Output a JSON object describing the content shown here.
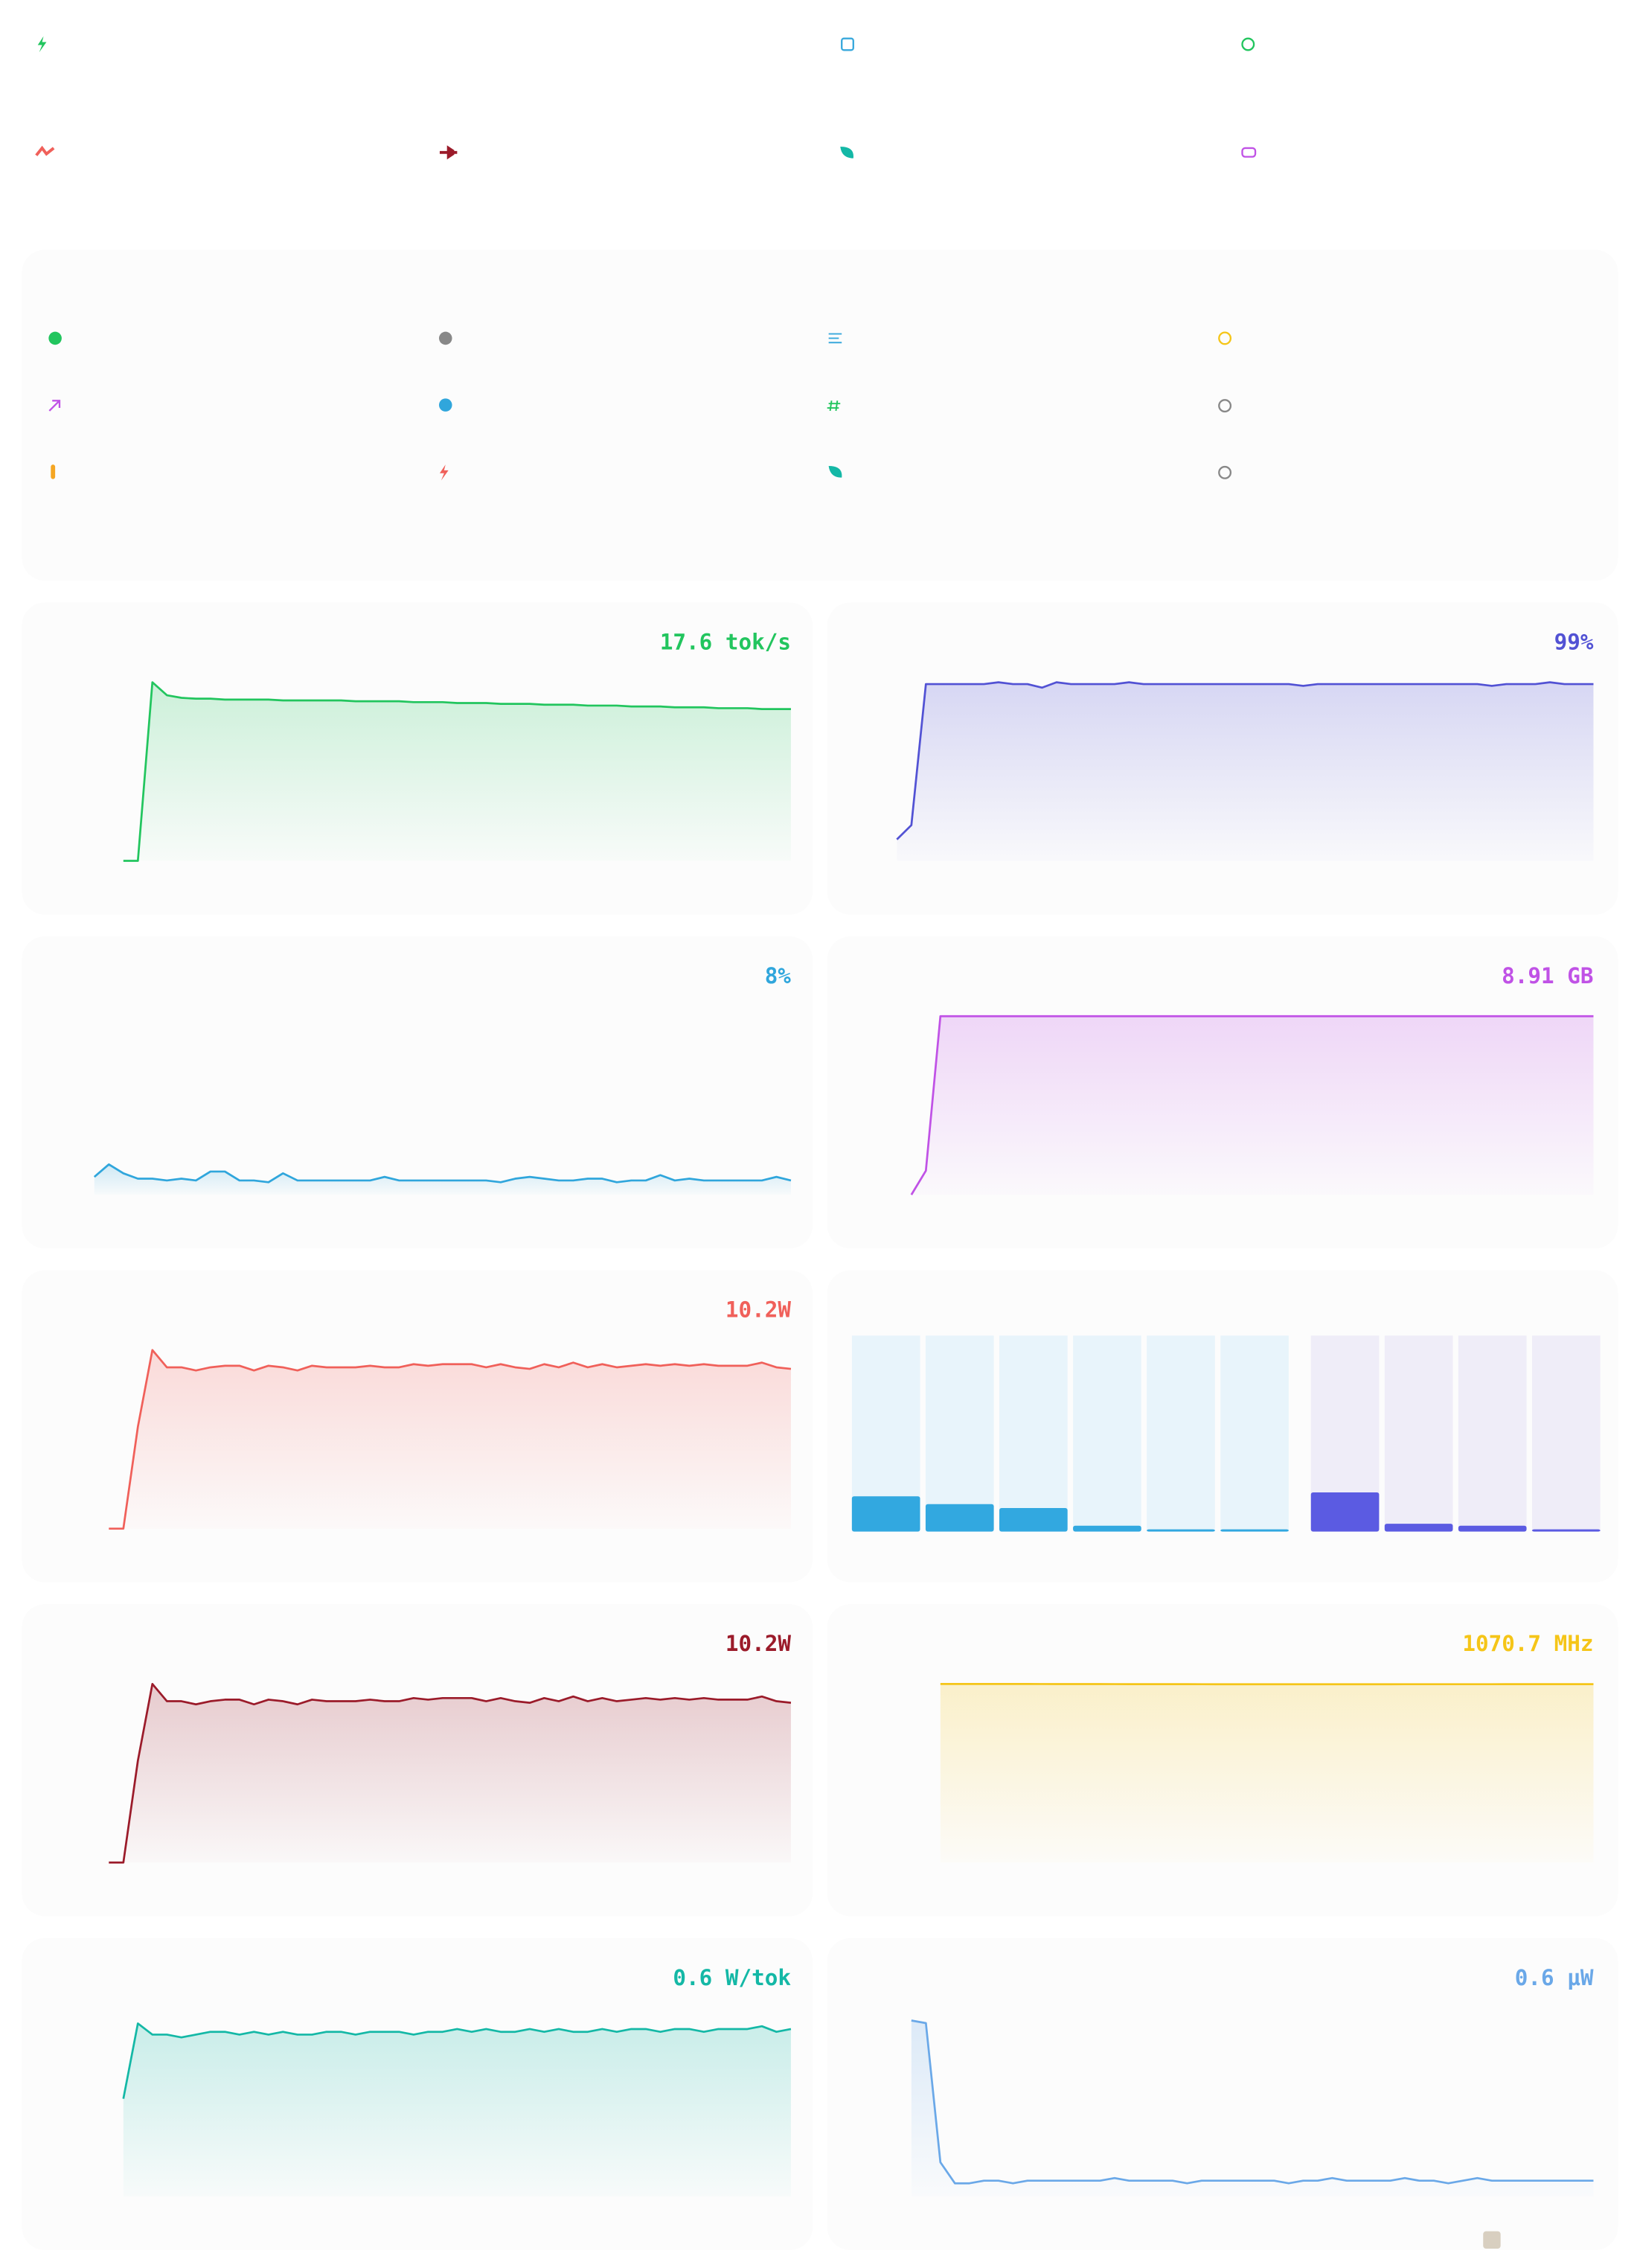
{
  "chart_data": [
    {
      "type": "area",
      "value_label": "17.6 tok/s",
      "color": "#22c55e",
      "ylim": [
        0,
        20.7
      ],
      "values": [
        null,
        null,
        0,
        0,
        20.7,
        19.2,
        18.9,
        18.8,
        18.8,
        18.7,
        18.7,
        18.7,
        18.7,
        18.6,
        18.6,
        18.6,
        18.6,
        18.6,
        18.5,
        18.5,
        18.5,
        18.5,
        18.4,
        18.4,
        18.4,
        18.3,
        18.3,
        18.3,
        18.2,
        18.2,
        18.2,
        18.1,
        18.1,
        18.1,
        18.0,
        18.0,
        18.0,
        17.9,
        17.9,
        17.9,
        17.8,
        17.8,
        17.8,
        17.7,
        17.7,
        17.7,
        17.6,
        17.6,
        17.6
      ]
    },
    {
      "type": "area",
      "value_label": "99%",
      "color": "#5252d4",
      "ylim": [
        0,
        100
      ],
      "values": [
        12,
        20,
        99,
        99,
        99,
        99,
        99,
        100,
        99,
        99,
        97,
        100,
        99,
        99,
        99,
        99,
        100,
        99,
        99,
        99,
        99,
        99,
        99,
        99,
        99,
        99,
        99,
        99,
        98,
        99,
        99,
        99,
        99,
        99,
        99,
        99,
        99,
        99,
        99,
        99,
        99,
        98,
        99,
        99,
        99,
        100,
        99,
        99,
        99
      ]
    },
    {
      "type": "area",
      "value_label": "8%",
      "color": "#30a6dc",
      "ylim": [
        0,
        100
      ],
      "values": [
        10,
        17,
        12,
        9,
        9,
        8,
        9,
        8,
        13,
        13,
        8,
        8,
        7,
        12,
        8,
        8,
        8,
        8,
        8,
        8,
        10,
        8,
        8,
        8,
        8,
        8,
        8,
        8,
        7,
        9,
        10,
        9,
        8,
        8,
        9,
        9,
        7,
        8,
        8,
        11,
        8,
        9,
        8,
        8,
        8,
        8,
        8,
        10,
        8
      ]
    },
    {
      "type": "area",
      "value_label": "8.91 GB",
      "color": "#c052e6",
      "ylim": [
        0,
        8.91
      ],
      "values": [
        null,
        0,
        1.2,
        8.91,
        8.91,
        8.91,
        8.91,
        8.91,
        8.91,
        8.91,
        8.91,
        8.91,
        8.91,
        8.91,
        8.91,
        8.91,
        8.91,
        8.91,
        8.91,
        8.91,
        8.91,
        8.91,
        8.91,
        8.91,
        8.91,
        8.91,
        8.91,
        8.91,
        8.91,
        8.91,
        8.91,
        8.91,
        8.91,
        8.91,
        8.91,
        8.91,
        8.91,
        8.91,
        8.91,
        8.91,
        8.91,
        8.91,
        8.91,
        8.91,
        8.91,
        8.91,
        8.91,
        8.91,
        8.91
      ]
    },
    {
      "type": "area",
      "value_label": "10.2W",
      "color": "#f0605a",
      "ylim": [
        0,
        11.4
      ],
      "values": [
        null,
        0,
        0,
        6.5,
        11.4,
        10.3,
        10.3,
        10.1,
        10.3,
        10.4,
        10.4,
        10.1,
        10.4,
        10.3,
        10.1,
        10.4,
        10.3,
        10.3,
        10.3,
        10.4,
        10.3,
        10.3,
        10.5,
        10.4,
        10.5,
        10.5,
        10.5,
        10.3,
        10.5,
        10.3,
        10.2,
        10.5,
        10.3,
        10.6,
        10.3,
        10.5,
        10.3,
        10.4,
        10.5,
        10.4,
        10.5,
        10.4,
        10.5,
        10.4,
        10.4,
        10.4,
        10.6,
        10.3,
        10.2
      ]
    },
    {
      "type": "bar",
      "ylim": [
        0,
        100
      ],
      "series": [
        {
          "color": "#32a8e0",
          "track_color": "#e8f4fb",
          "values": [
            18,
            14,
            12,
            3,
            1,
            1
          ]
        },
        {
          "color": "#5b5be2",
          "track_color": "#efedf8",
          "values": [
            20,
            4,
            3,
            1
          ]
        }
      ]
    },
    {
      "type": "area",
      "value_label": "10.2W",
      "color": "#9b1b2a",
      "ylim": [
        0,
        11.4
      ],
      "values": [
        null,
        0,
        0,
        6.5,
        11.4,
        10.3,
        10.3,
        10.1,
        10.3,
        10.4,
        10.4,
        10.1,
        10.4,
        10.3,
        10.1,
        10.4,
        10.3,
        10.3,
        10.3,
        10.4,
        10.3,
        10.3,
        10.5,
        10.4,
        10.5,
        10.5,
        10.5,
        10.3,
        10.5,
        10.3,
        10.2,
        10.5,
        10.3,
        10.6,
        10.3,
        10.5,
        10.3,
        10.4,
        10.5,
        10.4,
        10.5,
        10.4,
        10.5,
        10.4,
        10.4,
        10.4,
        10.6,
        10.3,
        10.2
      ]
    },
    {
      "type": "area",
      "value_label": "1070.7 MHz",
      "color": "#f5c518",
      "ylim": [
        0,
        1072
      ],
      "values": [
        null,
        null,
        null,
        1072,
        1072,
        1072,
        1071.9,
        1071.9,
        1071.8,
        1071.8,
        1071.7,
        1071.6,
        1071.5,
        1071.4,
        1071.3,
        1071.2,
        1071.1,
        1071.0,
        1070.9,
        1070.8,
        1070.7,
        1070.6,
        1070.5,
        1070.4,
        1070.4,
        1070.4,
        1070.4,
        1070.4,
        1070.4,
        1070.4,
        1070.5,
        1070.5,
        1070.5,
        1070.5,
        1070.5,
        1070.6,
        1070.6,
        1070.6,
        1070.6,
        1070.6,
        1070.6,
        1070.6,
        1070.7,
        1070.7,
        1070.7,
        1070.7,
        1070.7,
        1070.7,
        1070.7
      ]
    },
    {
      "type": "area",
      "value_label": "0.6 W/tok",
      "color": "#14b8a6",
      "ylim": [
        0,
        0.64
      ],
      "values": [
        null,
        null,
        0.35,
        0.62,
        0.58,
        0.58,
        0.57,
        0.58,
        0.59,
        0.59,
        0.58,
        0.59,
        0.58,
        0.59,
        0.58,
        0.58,
        0.59,
        0.59,
        0.58,
        0.59,
        0.59,
        0.59,
        0.58,
        0.59,
        0.59,
        0.6,
        0.59,
        0.6,
        0.59,
        0.59,
        0.6,
        0.59,
        0.6,
        0.59,
        0.59,
        0.6,
        0.59,
        0.6,
        0.6,
        0.59,
        0.6,
        0.6,
        0.59,
        0.6,
        0.6,
        0.6,
        0.61,
        0.59,
        0.6
      ]
    },
    {
      "type": "area",
      "value_label": "0.6 µW",
      "color": "#6aa8e8",
      "ylim": [
        0,
        6.8
      ],
      "values": [
        null,
        6.7,
        6.6,
        1.3,
        0.5,
        0.5,
        0.6,
        0.6,
        0.5,
        0.6,
        0.6,
        0.6,
        0.6,
        0.6,
        0.6,
        0.7,
        0.6,
        0.6,
        0.6,
        0.6,
        0.5,
        0.6,
        0.6,
        0.6,
        0.6,
        0.6,
        0.6,
        0.5,
        0.6,
        0.6,
        0.7,
        0.6,
        0.6,
        0.6,
        0.6,
        0.7,
        0.6,
        0.6,
        0.5,
        0.6,
        0.7,
        0.6,
        0.6,
        0.6,
        0.6,
        0.6,
        0.6,
        0.6,
        0.6
      ]
    }
  ]
}
